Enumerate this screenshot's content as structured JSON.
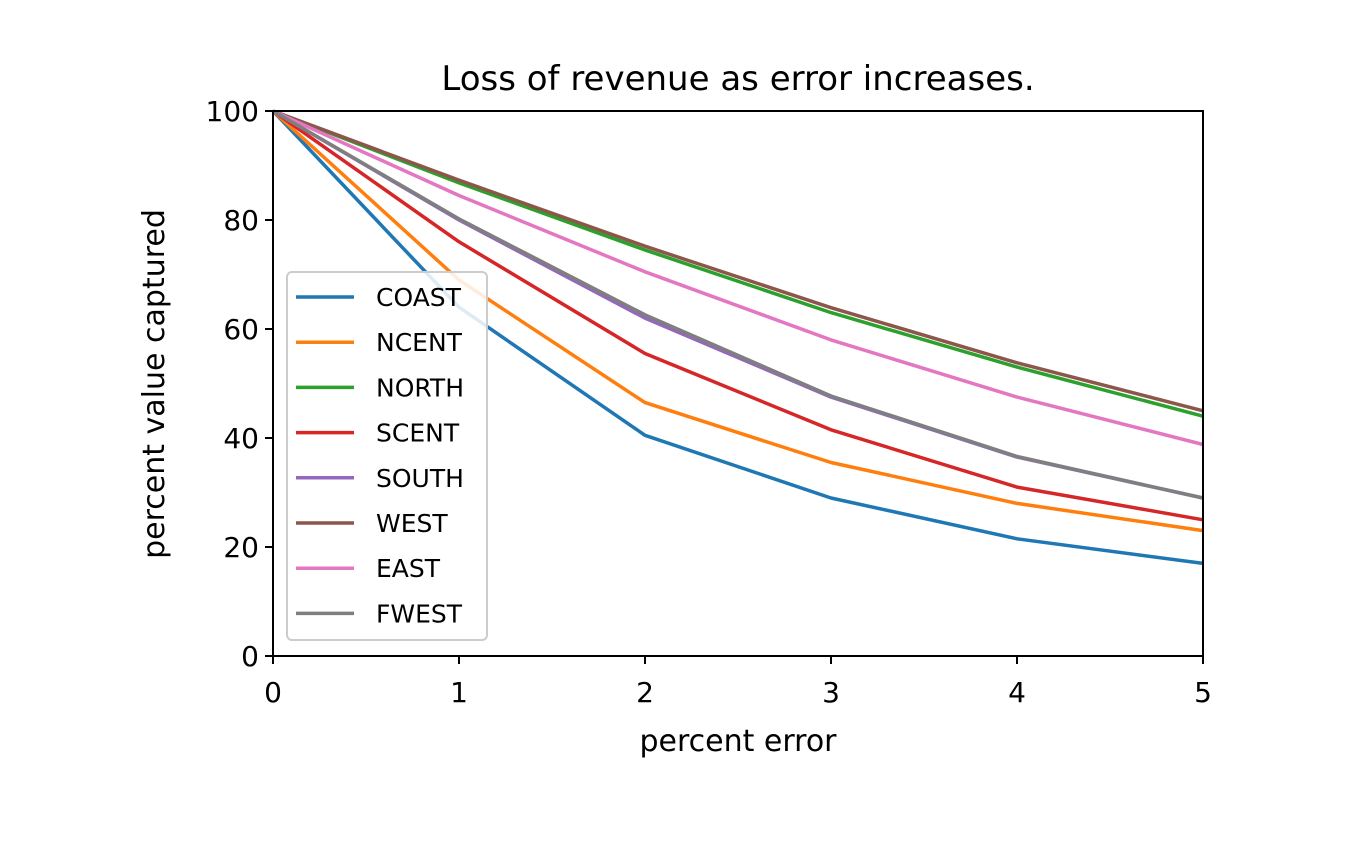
{
  "chart_data": {
    "type": "line",
    "title": "Loss of revenue as error increases.",
    "xlabel": "percent error",
    "ylabel": "percent value captured",
    "x": [
      0,
      1,
      2,
      3,
      4,
      5
    ],
    "xlim": [
      0,
      5
    ],
    "ylim": [
      0,
      100
    ],
    "xticks": [
      "0",
      "1",
      "2",
      "3",
      "4",
      "5"
    ],
    "yticks": [
      "0",
      "20",
      "40",
      "60",
      "80",
      "100"
    ],
    "grid": false,
    "legend_position": "center-left",
    "series": [
      {
        "name": "COAST",
        "color": "#1f77b4",
        "values": [
          100,
          64,
          40.5,
          29,
          21.5,
          17
        ]
      },
      {
        "name": "NCENT",
        "color": "#ff7f0e",
        "values": [
          100,
          69,
          46.5,
          35.5,
          28,
          23
        ]
      },
      {
        "name": "NORTH",
        "color": "#2ca02c",
        "values": [
          100,
          86.8,
          74.5,
          63,
          53,
          44
        ]
      },
      {
        "name": "SCENT",
        "color": "#d62728",
        "values": [
          100,
          76,
          55.5,
          41.5,
          31,
          25
        ]
      },
      {
        "name": "SOUTH",
        "color": "#9467bd",
        "values": [
          100,
          80,
          62,
          47.5,
          36.5,
          29
        ]
      },
      {
        "name": "WEST",
        "color": "#8c564b",
        "values": [
          100,
          87.3,
          75.2,
          63.9,
          53.8,
          45
        ]
      },
      {
        "name": "EAST",
        "color": "#e377c2",
        "values": [
          100,
          84.5,
          70.5,
          58,
          47.5,
          38.8
        ]
      },
      {
        "name": "FWEST",
        "color": "#7f7f7f",
        "values": [
          100,
          80.2,
          62.6,
          47.7,
          36.6,
          29
        ]
      }
    ]
  }
}
